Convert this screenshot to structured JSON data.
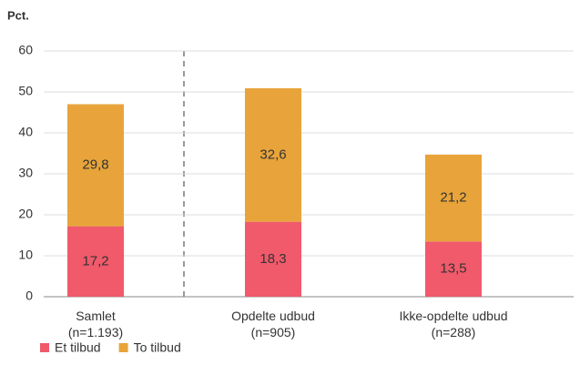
{
  "chart_data": {
    "type": "bar",
    "stacked": true,
    "y_label": "Pct.",
    "categories": [
      "Samlet\n(n=1.193)",
      "Opdelte udbud\n(n=905)",
      "Ikke-opdelte udbud\n(n=288)"
    ],
    "series": [
      {
        "name": "Et tilbud",
        "color": "#f05a6b",
        "values": [
          17.2,
          18.3,
          13.5
        ],
        "value_labels": [
          "17,2",
          "18,3",
          "13,5"
        ]
      },
      {
        "name": "To tilbud",
        "color": "#e8a43a",
        "values": [
          29.8,
          32.6,
          21.2
        ],
        "value_labels": [
          "29,8",
          "32,6",
          "21,2"
        ]
      }
    ],
    "ylim": [
      0,
      60
    ],
    "yticks": [
      0,
      10,
      20,
      30,
      40,
      50,
      60
    ],
    "grid": true,
    "legend": "bottom-left"
  }
}
